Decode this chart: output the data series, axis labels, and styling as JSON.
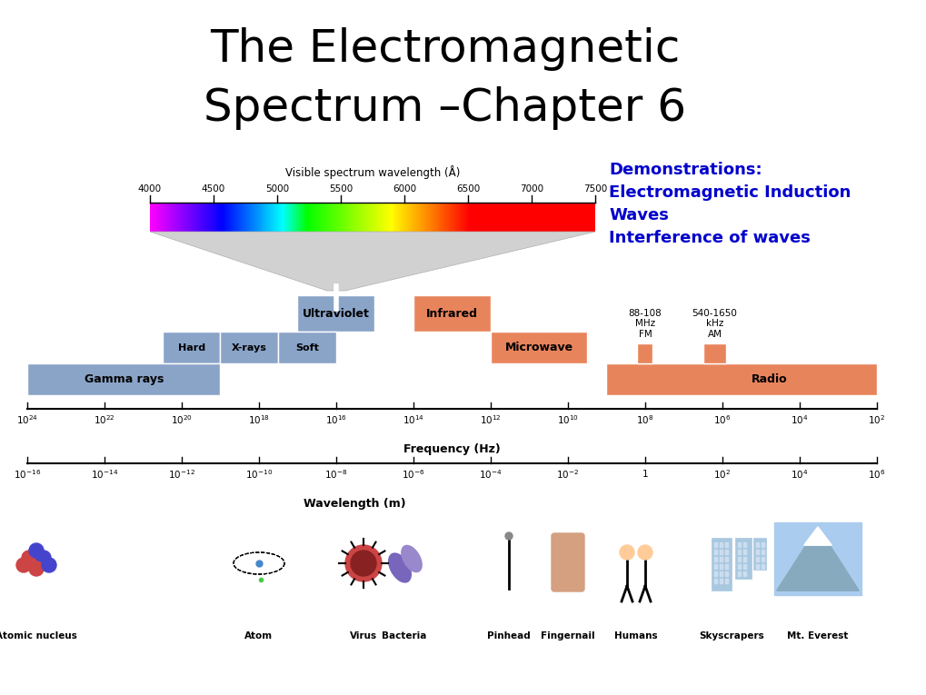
{
  "title_line1": "The Electromagnetic",
  "title_line2": "Spectrum –Chapter 6",
  "title_color": "#000000",
  "title_fontsize": 36,
  "demo_text": "Demonstrations:\nElectromagnetic Induction\nWaves\nInterference of waves",
  "demo_color": "#0000CC",
  "demo_fontsize": 13,
  "bg_color": "#FFFFFF",
  "vis_label": "Visible spectrum wavelength (Å)",
  "vis_ticks": [
    "4000",
    "4500",
    "5000",
    "5500",
    "6000",
    "6500",
    "7000",
    "7500"
  ],
  "freq_label": "Frequency (Hz)",
  "wl_label": "Wavelength (m)",
  "blue_color": "#8AA4C8",
  "orange_color": "#E8845C",
  "freq_labels": [
    "$10^{24}$",
    "$10^{22}$",
    "$10^{20}$",
    "$10^{18}$",
    "$10^{16}$",
    "$10^{14}$",
    "$10^{12}$",
    "$10^{10}$",
    "$10^{8}$",
    "$10^{6}$",
    "$10^{4}$",
    "$10^{2}$"
  ],
  "wl_labels": [
    "$10^{-16}$",
    "$10^{-14}$",
    "$10^{-12}$",
    "$10^{-10}$",
    "$10^{-8}$",
    "$10^{-6}$",
    "$10^{-4}$",
    "$10^{-2}$",
    "$1$",
    "$10^{2}$",
    "$10^{4}$",
    "$10^{6}$"
  ],
  "icon_labels": [
    "Atomic nucleus",
    "Atom",
    "Virus",
    "Bacteria",
    "Pinhead",
    "Fingernail",
    "Humans",
    "Skyscrapers",
    "Mt. Everest"
  ]
}
